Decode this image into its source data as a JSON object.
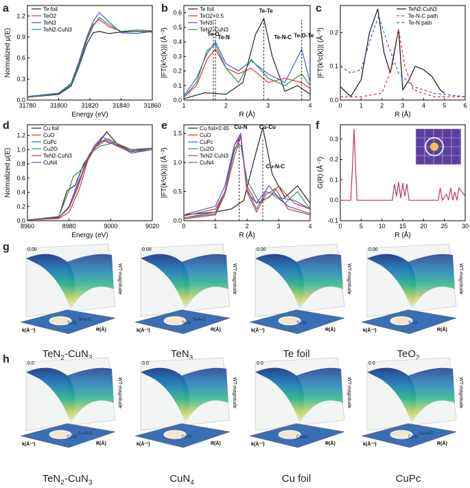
{
  "panels": {
    "a": "a",
    "b": "b",
    "c": "c",
    "d": "d",
    "e": "e",
    "f": "f",
    "g": "g",
    "h": "h"
  },
  "chart_data": [
    {
      "id": "a",
      "type": "line",
      "xlabel": "Energy (eV)",
      "ylabel": "Normalized μ(E)",
      "xlim": [
        31780,
        31860
      ],
      "ylim": [
        0,
        1.35
      ],
      "xticks": [
        31780,
        31800,
        31820,
        31840,
        31860
      ],
      "yticks": [
        0.0,
        0.3,
        0.6,
        0.9,
        1.2
      ],
      "legend": [
        "Te foil",
        "TeO2",
        "TeN3",
        "TeN2-CuN3"
      ],
      "series": [
        {
          "name": "Te foil",
          "color": "#222222",
          "x": [
            31780,
            31800,
            31808,
            31813,
            31818,
            31822,
            31826,
            31832,
            31840,
            31850,
            31860
          ],
          "y": [
            0.04,
            0.08,
            0.2,
            0.48,
            0.8,
            0.96,
            0.98,
            0.95,
            0.97,
            0.98,
            0.97
          ]
        },
        {
          "name": "TeO2",
          "color": "#e03030",
          "x": [
            31780,
            31800,
            31808,
            31813,
            31818,
            31822,
            31826,
            31832,
            31840,
            31850,
            31860
          ],
          "y": [
            0.04,
            0.09,
            0.22,
            0.52,
            0.88,
            1.08,
            1.15,
            1.05,
            0.98,
            1.0,
            0.98
          ]
        },
        {
          "name": "TeN3",
          "color": "#3a5fcd",
          "x": [
            31780,
            31800,
            31808,
            31813,
            31818,
            31822,
            31826,
            31832,
            31840,
            31850,
            31860
          ],
          "y": [
            0.05,
            0.1,
            0.24,
            0.55,
            0.9,
            1.12,
            1.25,
            1.12,
            0.96,
            0.95,
            0.98
          ]
        },
        {
          "name": "TeN2-CuN3",
          "color": "#2e8b57",
          "x": [
            31780,
            31800,
            31808,
            31813,
            31818,
            31822,
            31826,
            31832,
            31840,
            31850,
            31860
          ],
          "y": [
            0.04,
            0.09,
            0.22,
            0.5,
            0.85,
            1.05,
            1.18,
            1.08,
            0.98,
            1.0,
            0.99
          ]
        }
      ]
    },
    {
      "id": "b",
      "type": "line",
      "xlabel": "R (Å)",
      "ylabel": "|FT(k²c(k))| (Å⁻³)",
      "xlim": [
        1,
        4
      ],
      "ylim": [
        0,
        0.65
      ],
      "xticks": [
        1,
        2,
        3,
        4
      ],
      "yticks": [
        0.0,
        0.1,
        0.2,
        0.3,
        0.4,
        0.5,
        0.6
      ],
      "legend": [
        "Te foil",
        "TeO2×0.5",
        "TeN3",
        "TeN2-CuN3"
      ],
      "annotations": [
        "Te-O",
        "Te-N",
        "Te-Te",
        "Te-N-C",
        "Te-O-Te"
      ],
      "series": [
        {
          "name": "Te foil",
          "color": "#222222",
          "x": [
            1,
            1.5,
            2,
            2.4,
            2.7,
            2.9,
            3.1,
            3.4,
            3.7,
            4
          ],
          "y": [
            0.01,
            0.05,
            0.04,
            0.12,
            0.45,
            0.56,
            0.3,
            0.06,
            0.1,
            0.04
          ]
        },
        {
          "name": "TeO2×0.5",
          "color": "#e03030",
          "x": [
            1,
            1.3,
            1.55,
            1.75,
            2.0,
            2.3,
            2.6,
            3.0,
            3.4,
            3.8,
            4
          ],
          "y": [
            0.02,
            0.1,
            0.28,
            0.35,
            0.22,
            0.18,
            0.22,
            0.12,
            0.15,
            0.12,
            0.08
          ]
        },
        {
          "name": "TeN3",
          "color": "#3a5fcd",
          "x": [
            1,
            1.3,
            1.55,
            1.75,
            2.0,
            2.3,
            2.6,
            3.0,
            3.4,
            3.8,
            4
          ],
          "y": [
            0.03,
            0.15,
            0.32,
            0.4,
            0.25,
            0.2,
            0.27,
            0.18,
            0.12,
            0.35,
            0.12
          ]
        },
        {
          "name": "TeN2-CuN3",
          "color": "#2e8b57",
          "x": [
            1,
            1.3,
            1.55,
            1.75,
            2.0,
            2.3,
            2.6,
            3.0,
            3.4,
            3.8,
            4
          ],
          "y": [
            0.02,
            0.12,
            0.34,
            0.38,
            0.22,
            0.12,
            0.28,
            0.15,
            0.1,
            0.18,
            0.1
          ]
        }
      ]
    },
    {
      "id": "c",
      "type": "line",
      "xlabel": "R (Å)",
      "ylabel": "|FT(k²c(k))| (Å⁻³)",
      "xlim": [
        0,
        6
      ],
      "ylim": [
        0,
        0.28
      ],
      "xticks": [
        0,
        1,
        2,
        3,
        4,
        5,
        6
      ],
      "yticks": [
        0.0,
        0.1,
        0.2
      ],
      "legend": [
        "TeN2-CuN3",
        "Te-N-C path",
        "Te-N path"
      ],
      "series": [
        {
          "name": "TeN2-CuN3",
          "color": "#111111",
          "x": [
            0,
            0.5,
            1.0,
            1.4,
            1.8,
            2.1,
            2.4,
            2.8,
            3.0,
            3.3,
            3.6,
            4.0,
            4.4,
            4.8,
            5.0
          ],
          "y": [
            0.04,
            0.01,
            0.06,
            0.2,
            0.27,
            0.14,
            0.08,
            0.21,
            0.03,
            0.06,
            0.1,
            0.09,
            0.07,
            0.03,
            0.02
          ]
        },
        {
          "name": "Te-N-C path",
          "color": "#e03030",
          "dash": "4,3",
          "x": [
            0,
            1,
            2,
            2.5,
            2.8,
            3.1,
            3.5,
            4.5,
            6
          ],
          "y": [
            0.01,
            0.01,
            0.02,
            0.1,
            0.21,
            0.1,
            0.03,
            0.01,
            0.01
          ]
        },
        {
          "name": "Te-N path",
          "color": "#3a5fcd",
          "dash": "4,3",
          "x": [
            0,
            0.5,
            1.0,
            1.5,
            1.85,
            2.2,
            2.8,
            3.5,
            4.5,
            6
          ],
          "y": [
            0.1,
            0.08,
            0.09,
            0.19,
            0.25,
            0.18,
            0.08,
            0.04,
            0.02,
            0.01
          ]
        }
      ]
    },
    {
      "id": "d",
      "type": "line",
      "xlabel": "Energy (eV)",
      "ylabel": "Normalized μ(E)",
      "xlim": [
        8960,
        9020
      ],
      "ylim": [
        0,
        1.35
      ],
      "xticks": [
        8960,
        8980,
        9000,
        9020
      ],
      "yticks": [
        0.0,
        0.2,
        0.4,
        0.6,
        0.8,
        1.0,
        1.2
      ],
      "legend": [
        "Cu foil",
        "CuO",
        "CuPc",
        "Cu2O",
        "TeN2-CuN3",
        "CuN4"
      ],
      "series": [
        {
          "name": "Cu foil",
          "color": "#222222",
          "x": [
            8960,
            8975,
            8979,
            8983,
            8987,
            8992,
            8998,
            9004,
            9010,
            9020
          ],
          "y": [
            0.01,
            0.05,
            0.42,
            0.5,
            0.8,
            1.0,
            1.25,
            1.05,
            1.0,
            1.02
          ]
        },
        {
          "name": "CuO",
          "color": "#e03030",
          "x": [
            8960,
            8975,
            8980,
            8985,
            8989,
            8994,
            8999,
            9005,
            9012,
            9020
          ],
          "y": [
            0.01,
            0.03,
            0.12,
            0.45,
            0.85,
            1.1,
            1.15,
            1.05,
            0.98,
            1.0
          ]
        },
        {
          "name": "CuPc",
          "color": "#3a5fcd",
          "x": [
            8960,
            8975,
            8980,
            8984,
            8988,
            8992,
            8996,
            9002,
            9010,
            9020
          ],
          "y": [
            0.01,
            0.04,
            0.2,
            0.52,
            0.78,
            1.05,
            1.18,
            1.08,
            0.95,
            1.0
          ]
        },
        {
          "name": "Cu2O",
          "color": "#2e8b57",
          "x": [
            8960,
            8975,
            8979,
            8982,
            8986,
            8990,
            8995,
            9002,
            9010,
            9020
          ],
          "y": [
            0.01,
            0.06,
            0.35,
            0.62,
            0.72,
            0.95,
            1.05,
            1.1,
            1.0,
            1.0
          ]
        },
        {
          "name": "TeN2-CuN3",
          "color": "#a0522d",
          "x": [
            8960,
            8975,
            8980,
            8984,
            8988,
            8992,
            8997,
            9003,
            9010,
            9020
          ],
          "y": [
            0.01,
            0.04,
            0.18,
            0.45,
            0.8,
            1.02,
            1.12,
            1.06,
            0.98,
            1.0
          ]
        },
        {
          "name": "CuN4",
          "color": "#8e44ad",
          "x": [
            8960,
            8975,
            8980,
            8984,
            8988,
            8992,
            8997,
            9003,
            9010,
            9020
          ],
          "y": [
            0.01,
            0.04,
            0.2,
            0.48,
            0.82,
            1.04,
            1.14,
            1.05,
            0.97,
            1.0
          ]
        }
      ]
    },
    {
      "id": "e",
      "type": "line",
      "xlabel": "R (Å)",
      "ylabel": "|FT(k²c(k))| (Å⁻³)",
      "xlim": [
        0,
        4
      ],
      "ylim": [
        0,
        1.65
      ],
      "xticks": [
        0,
        1,
        2,
        3,
        4
      ],
      "yticks": [
        0.0,
        0.5,
        1.0,
        1.5
      ],
      "legend": [
        "Cu foil×0.45",
        "CuO",
        "CuPc",
        "Cu2O",
        "TeN2-CuN3",
        "CuN4"
      ],
      "annotations": [
        "Cu-N",
        "Cu-Cu",
        "Cu-N-C"
      ],
      "series": [
        {
          "name": "Cu foil×0.45",
          "color": "#222222",
          "x": [
            0,
            1,
            1.5,
            1.9,
            2.2,
            2.5,
            2.8,
            3.2,
            3.6,
            4
          ],
          "y": [
            0.1,
            0.15,
            0.2,
            0.35,
            1.0,
            1.6,
            0.8,
            0.4,
            0.6,
            0.3
          ]
        },
        {
          "name": "CuO",
          "color": "#e03030",
          "x": [
            0,
            1,
            1.3,
            1.6,
            1.8,
            2.0,
            2.3,
            2.7,
            3.0,
            3.5,
            4
          ],
          "y": [
            0.08,
            0.2,
            0.5,
            1.3,
            1.45,
            0.6,
            0.3,
            0.4,
            0.6,
            0.3,
            0.2
          ]
        },
        {
          "name": "CuPc",
          "color": "#3a5fcd",
          "x": [
            0,
            1,
            1.3,
            1.6,
            1.8,
            2.0,
            2.3,
            2.7,
            3.0,
            3.5,
            4
          ],
          "y": [
            0.1,
            0.25,
            0.6,
            1.3,
            1.5,
            0.5,
            0.3,
            0.6,
            0.4,
            0.35,
            0.2
          ]
        },
        {
          "name": "Cu2O",
          "color": "#2e8b57",
          "x": [
            0,
            1,
            1.3,
            1.6,
            1.8,
            2.0,
            2.4,
            2.8,
            3.2,
            3.6,
            4
          ],
          "y": [
            0.05,
            0.15,
            0.5,
            1.25,
            1.3,
            0.7,
            0.3,
            0.45,
            0.3,
            0.5,
            0.2
          ]
        },
        {
          "name": "TeN2-CuN3",
          "color": "#a0522d",
          "x": [
            0,
            1,
            1.3,
            1.6,
            1.8,
            2.0,
            2.3,
            2.6,
            2.9,
            3.3,
            4
          ],
          "y": [
            0.03,
            0.1,
            0.45,
            1.1,
            1.45,
            0.5,
            0.15,
            0.45,
            0.55,
            0.2,
            0.1
          ]
        },
        {
          "name": "CuN4",
          "color": "#8e44ad",
          "x": [
            0,
            1,
            1.3,
            1.6,
            1.8,
            2.0,
            2.3,
            2.6,
            2.9,
            3.3,
            4
          ],
          "y": [
            0.05,
            0.12,
            0.5,
            1.2,
            1.48,
            0.55,
            0.2,
            0.5,
            0.45,
            0.25,
            0.12
          ]
        }
      ]
    },
    {
      "id": "f",
      "type": "line",
      "xlabel": "R (Å)",
      "ylabel": "G(R) (Å⁻²)",
      "xlim": [
        0,
        30
      ],
      "ylim": [
        -0.1,
        0.37
      ],
      "xticks": [
        0,
        5,
        10,
        15,
        20,
        25,
        30
      ],
      "yticks": [
        -0.1,
        0.0,
        0.1,
        0.2,
        0.3
      ],
      "series": [
        {
          "name": "G(R)",
          "color": "#c0306a",
          "x": [
            0,
            2.5,
            3.0,
            3.3,
            3.6,
            4.0,
            4.5,
            12.5,
            13.0,
            13.5,
            14.0,
            14.5,
            15.0,
            15.5,
            16.0,
            16.5,
            17.5,
            23.5,
            24.0,
            24.5,
            25.5,
            26.0,
            26.5,
            27.0,
            27.5,
            28.0,
            28.5,
            30
          ],
          "y": [
            0.0,
            0.0,
            0.2,
            0.35,
            0.2,
            0.0,
            0.0,
            0.0,
            0.08,
            0.02,
            0.09,
            0.01,
            0.085,
            0.02,
            0.08,
            0.0,
            0.0,
            0.0,
            0.06,
            0.0,
            0.03,
            0.0,
            0.06,
            0.0,
            0.04,
            0.0,
            0.06,
            0.02
          ]
        }
      ]
    }
  ],
  "wavelet": {
    "z_label": "WT-magnitude",
    "x_label": "k(Å⁻¹)",
    "y_label": "R(Å)",
    "g": [
      {
        "title_main": "TeN",
        "title_sub1": "2",
        "title_dash": "-CuN",
        "title_sub2": "3",
        "contour": [
          "Te-N",
          "Te-N-C"
        ],
        "zmax": "0.00"
      },
      {
        "title_main": "TeN",
        "title_sub1": "3",
        "title_dash": "",
        "title_sub2": "",
        "contour": [
          "Te-N",
          "Te-N-C"
        ],
        "zmax": "0.00"
      },
      {
        "title_main": "Te  foil",
        "title_sub1": "",
        "title_dash": "",
        "title_sub2": "",
        "contour": [
          "Te-Te"
        ],
        "zmax": "0.00"
      },
      {
        "title_main": "TeO",
        "title_sub1": "2",
        "title_dash": "",
        "title_sub2": "",
        "contour": [
          "Te-O"
        ],
        "zmax": "0.00"
      }
    ],
    "h": [
      {
        "title_main": "TeN",
        "title_sub1": "2",
        "title_dash": "-CuN",
        "title_sub2": "3",
        "contour": [
          "Cu-N",
          "Cu-N-C"
        ],
        "zmax": "0.0"
      },
      {
        "title_main": "CuN",
        "title_sub1": "4",
        "title_dash": "",
        "title_sub2": "",
        "contour": [
          "Cu-N"
        ],
        "zmax": "0.0"
      },
      {
        "title_main": "Cu  foil",
        "title_sub1": "",
        "title_dash": "",
        "title_sub2": "",
        "contour": [
          "Cu-Cu"
        ],
        "zmax": "0.0"
      },
      {
        "title_main": "CuPc",
        "title_sub1": "",
        "title_dash": "",
        "title_sub2": "",
        "contour": [
          "Cu-N",
          "Cu-N-C"
        ],
        "zmax": "0.0"
      }
    ]
  }
}
